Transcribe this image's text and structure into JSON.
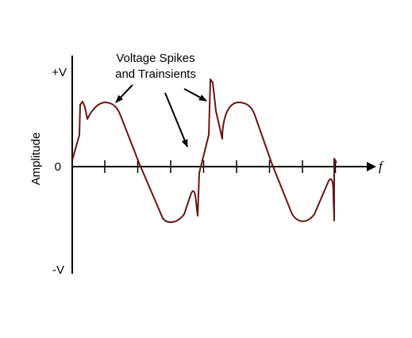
{
  "diagram": {
    "y_axis": {
      "title": "Amplitude",
      "top_label": "+V",
      "zero_label": "0",
      "bottom_label": "-V"
    },
    "x_axis": {
      "label": "f",
      "tick_count": 8
    },
    "annotation": {
      "line1": "Voltage Spikes",
      "line2": "and Trainsients"
    },
    "colors": {
      "waveform": "#6b1414",
      "axes": "#000000"
    }
  }
}
